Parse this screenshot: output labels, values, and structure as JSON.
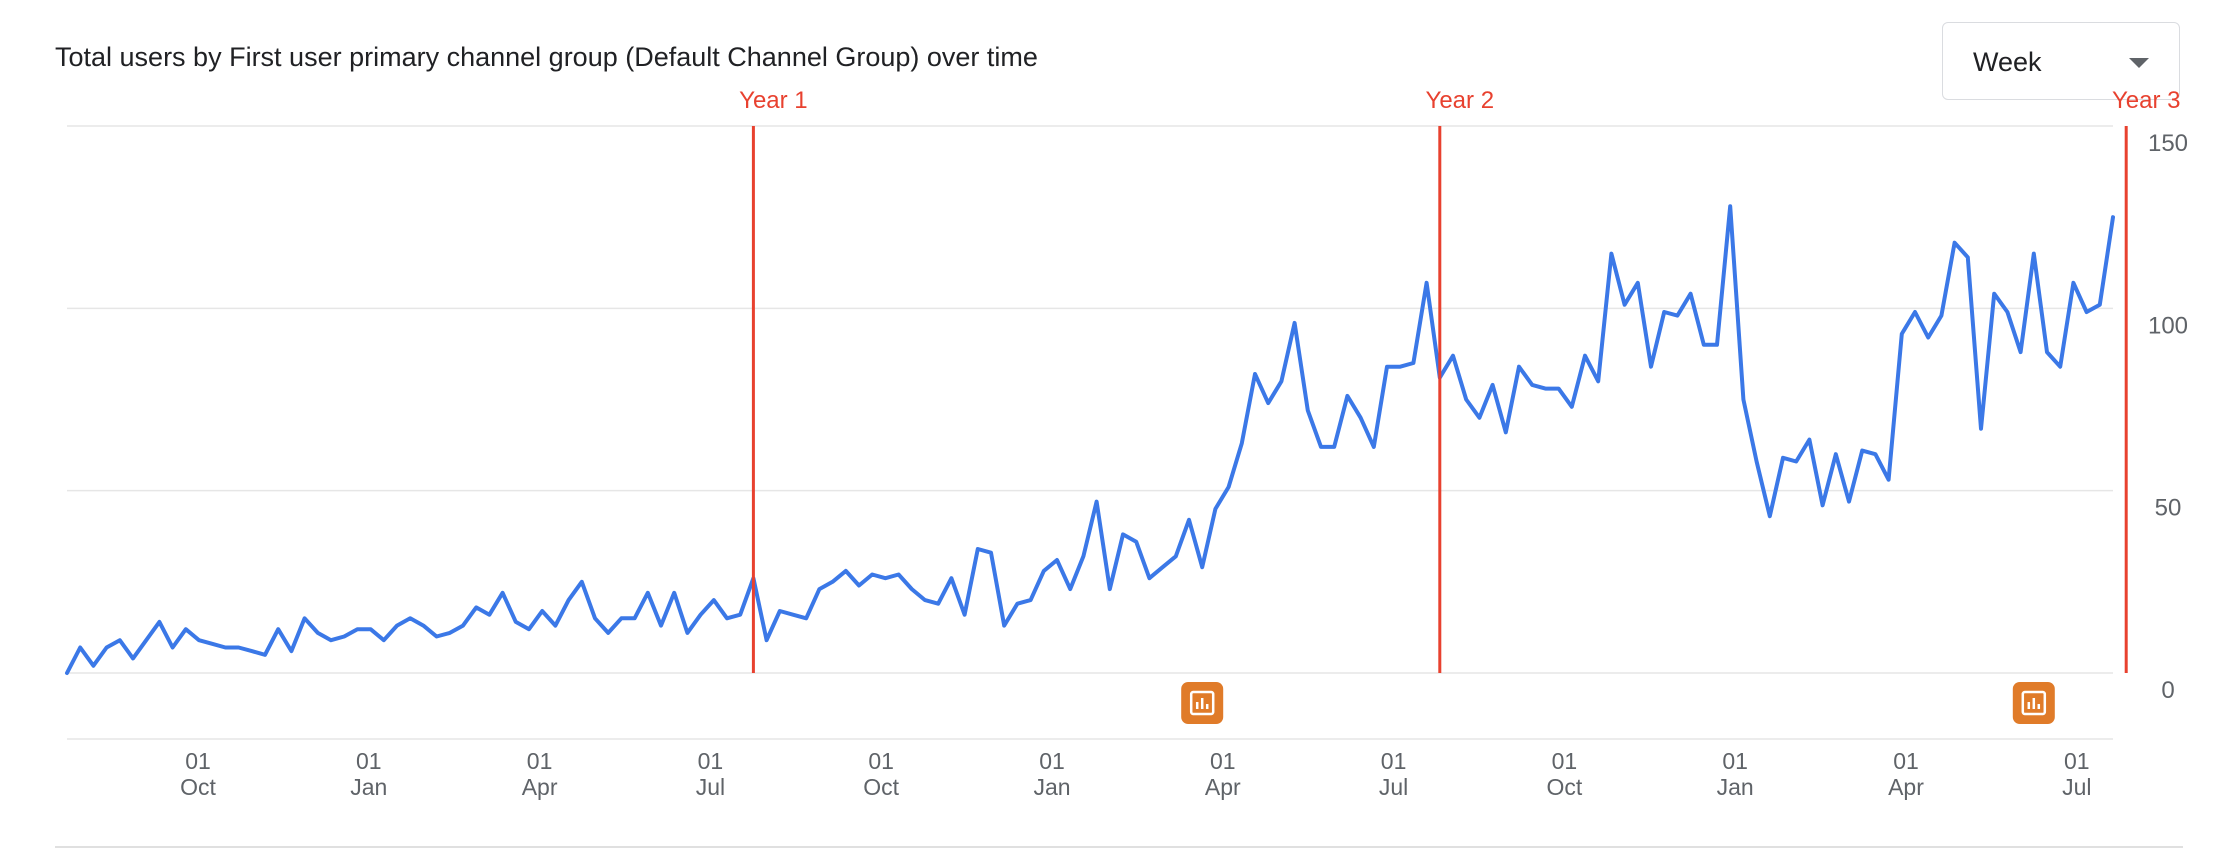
{
  "header": {
    "title": "Total users by First user primary channel group (Default Channel Group) over time"
  },
  "granularity": {
    "selected": "Week"
  },
  "icons": {
    "dropdown": "chevron-down-icon",
    "annotation": "annotation-icon"
  },
  "colors": {
    "series": "#3b78e7",
    "marker": "#e8412f",
    "annotation": "#e07b29",
    "grid": "#e6e6e6",
    "axis_text": "#5f6368"
  },
  "chart_data": {
    "type": "line",
    "x_unit": "week",
    "x_ticks": [
      {
        "day": "01",
        "month": "Oct"
      },
      {
        "day": "01",
        "month": "Jan"
      },
      {
        "day": "01",
        "month": "Apr"
      },
      {
        "day": "01",
        "month": "Jul"
      },
      {
        "day": "01",
        "month": "Oct"
      },
      {
        "day": "01",
        "month": "Jan"
      },
      {
        "day": "01",
        "month": "Apr"
      },
      {
        "day": "01",
        "month": "Jul"
      },
      {
        "day": "01",
        "month": "Oct"
      },
      {
        "day": "01",
        "month": "Jan"
      },
      {
        "day": "01",
        "month": "Apr"
      },
      {
        "day": "01",
        "month": "Jul"
      }
    ],
    "y_axis": {
      "position": "right",
      "ticks": [
        0,
        50,
        100,
        150
      ],
      "ylim": [
        0,
        150
      ]
    },
    "grid": true,
    "series": [
      {
        "values": [
          0,
          7,
          2,
          7,
          9,
          4,
          9,
          14,
          7,
          12,
          9,
          8,
          7,
          7,
          6,
          5,
          12,
          6,
          15,
          11,
          9,
          10,
          12,
          12,
          9,
          13,
          15,
          13,
          10,
          11,
          13,
          18,
          16,
          22,
          14,
          12,
          17,
          13,
          20,
          25,
          15,
          11,
          15,
          15,
          22,
          13,
          22,
          11,
          16,
          20,
          15,
          16,
          26,
          9,
          17,
          16,
          15,
          23,
          25,
          28,
          24,
          27,
          26,
          27,
          23,
          20,
          19,
          26,
          16,
          34,
          33,
          13,
          19,
          20,
          28,
          31,
          23,
          32,
          47,
          23,
          38,
          36,
          26,
          29,
          32,
          42,
          29,
          45,
          51,
          63,
          82,
          74,
          80,
          96,
          72,
          62,
          62,
          76,
          70,
          62,
          84,
          84,
          85,
          107,
          81,
          87,
          75,
          70,
          79,
          66,
          84,
          79,
          78,
          78,
          73,
          87,
          80,
          115,
          101,
          107,
          84,
          99,
          98,
          104,
          90,
          90,
          128,
          75,
          58,
          43,
          59,
          58,
          64,
          46,
          60,
          47,
          61,
          60,
          53,
          93,
          99,
          92,
          98,
          118,
          114,
          67,
          104,
          99,
          88,
          115,
          88,
          84,
          107,
          99,
          101,
          125
        ],
        "estimated": true
      }
    ],
    "markers": [
      {
        "label": "Year 1",
        "index": 52
      },
      {
        "label": "Year 2",
        "index": 104
      },
      {
        "label": "Year 3",
        "index": 156
      }
    ],
    "annotations": [
      {
        "index": 86
      },
      {
        "index": 149
      }
    ]
  }
}
